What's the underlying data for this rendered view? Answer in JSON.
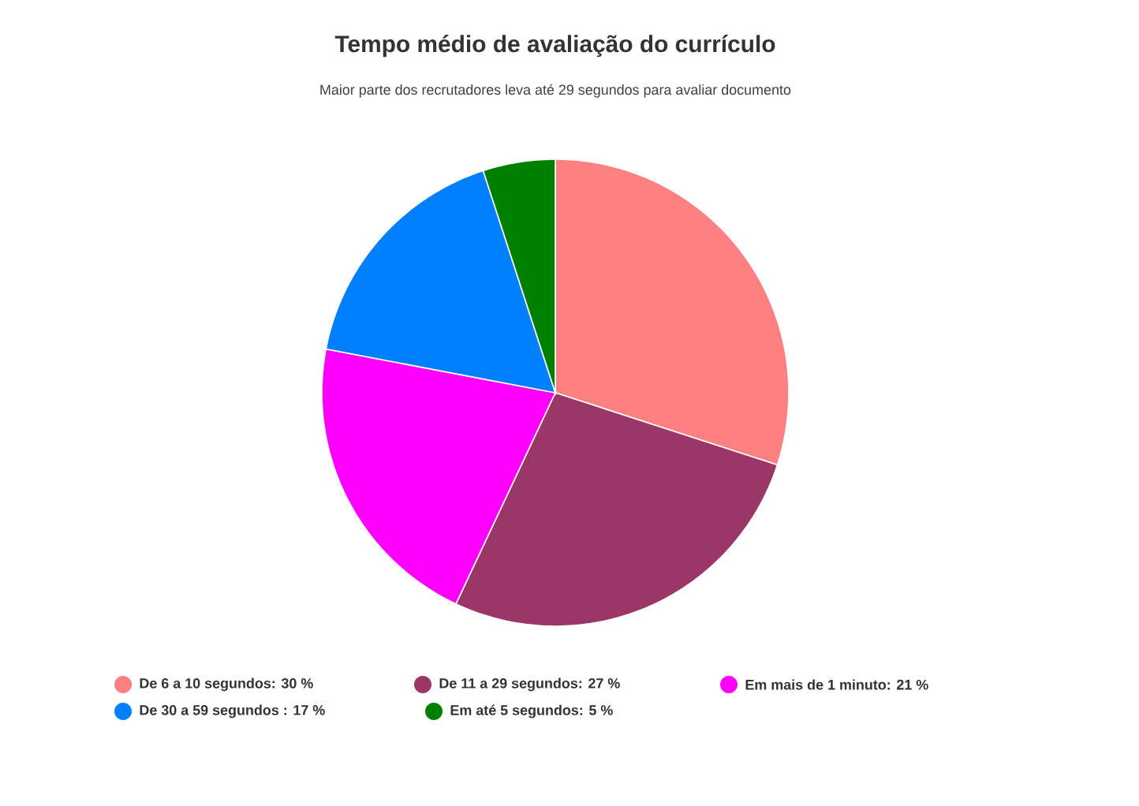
{
  "chart_data": {
    "type": "pie",
    "title": "Tempo médio de avaliação do currículo",
    "subtitle": "Maior parte dos recrutadores leva até 29 segundos para avaliar documento",
    "categories": [
      "De 6 a 10 segundos: 30 %",
      "De 11 a 29 segundos: 27 %",
      "Em mais de 1 minuto: 21 %",
      "De 30 a 59 segundos : 17 %",
      "Em até 5 segundos: 5 %"
    ],
    "values": [
      30,
      27,
      21,
      17,
      5
    ],
    "colors": [
      "#ff8080",
      "#9b3766",
      "#ff00ff",
      "#0080ff",
      "#008000"
    ],
    "legend": "bottom"
  }
}
